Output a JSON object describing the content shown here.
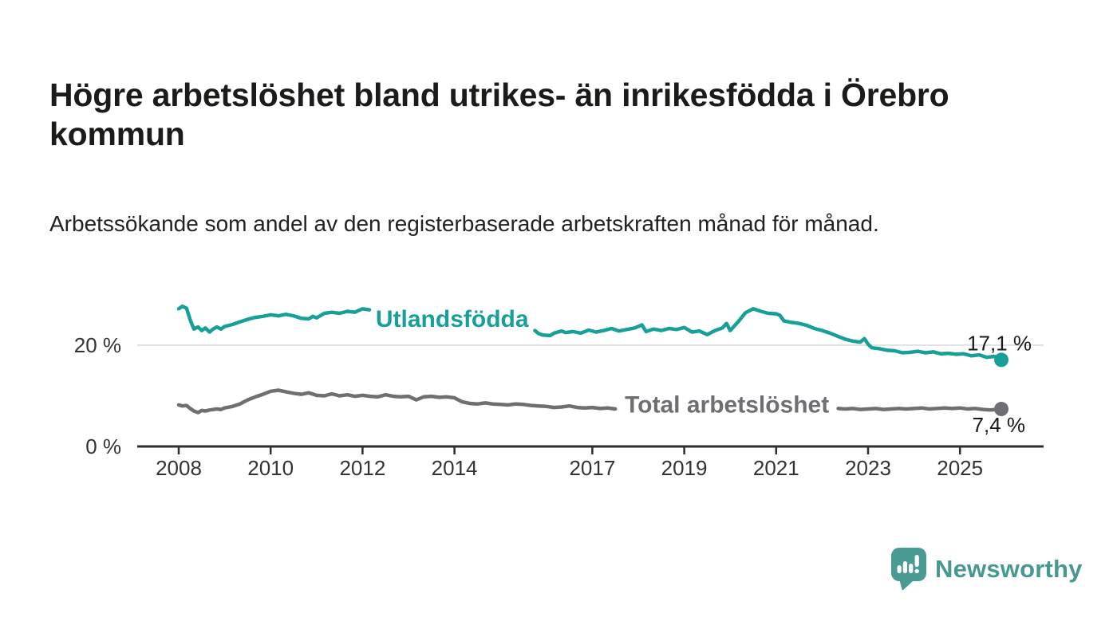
{
  "header": {
    "title": "Högre arbetslöshet bland utrikes- än inrikesfödda i Örebro kommun",
    "subtitle": "Arbetssökande som andel av den registerbaserade arbetskraften månad för månad."
  },
  "chart_data": {
    "type": "line",
    "unit": "%",
    "grid": "horizontal-only",
    "x_axis": {
      "ticks": [
        2008,
        2010,
        2012,
        2014,
        2017,
        2019,
        2021,
        2023,
        2025
      ],
      "range": [
        2007.1,
        2026.8
      ]
    },
    "y_axis": {
      "ticks": [
        {
          "value": 0,
          "label": "0 %"
        },
        {
          "value": 20,
          "label": "20 %"
        }
      ],
      "range": [
        0,
        32
      ]
    },
    "colors": {
      "accent_teal": "#18a098",
      "neutral_gray": "#6e6e73",
      "gridline": "#d8d8d8",
      "axis": "#2e2e2e",
      "tick_label": "#333333",
      "end_label": "#1a1a1a"
    },
    "series": [
      {
        "name": "Utlandsfödda",
        "color": "#18a098",
        "end_label": "17,1 %",
        "end_value": 17.1,
        "inline_label": {
          "text": "Utlandsfödda",
          "year": 2013.95,
          "value": 25.2
        },
        "segments": [
          [
            [
              2008.0,
              27.2
            ],
            [
              2008.08,
              27.7
            ],
            [
              2008.17,
              27.3
            ],
            [
              2008.25,
              25.0
            ],
            [
              2008.33,
              23.2
            ],
            [
              2008.42,
              23.6
            ],
            [
              2008.5,
              22.9
            ],
            [
              2008.58,
              23.4
            ],
            [
              2008.67,
              22.6
            ],
            [
              2008.75,
              23.2
            ],
            [
              2008.83,
              23.6
            ],
            [
              2008.92,
              23.2
            ],
            [
              2009.0,
              23.7
            ],
            [
              2009.17,
              24.1
            ],
            [
              2009.33,
              24.6
            ],
            [
              2009.5,
              25.1
            ],
            [
              2009.67,
              25.5
            ],
            [
              2009.83,
              25.7
            ],
            [
              2010.0,
              26.0
            ],
            [
              2010.17,
              25.8
            ],
            [
              2010.33,
              26.1
            ],
            [
              2010.5,
              25.8
            ],
            [
              2010.67,
              25.3
            ],
            [
              2010.83,
              25.2
            ],
            [
              2010.92,
              25.7
            ],
            [
              2011.0,
              25.4
            ],
            [
              2011.17,
              26.3
            ],
            [
              2011.33,
              26.5
            ],
            [
              2011.5,
              26.3
            ],
            [
              2011.67,
              26.7
            ],
            [
              2011.83,
              26.5
            ],
            [
              2012.0,
              27.2
            ],
            [
              2012.15,
              27.0
            ]
          ],
          [
            [
              2015.75,
              22.9
            ],
            [
              2015.83,
              22.3
            ],
            [
              2015.92,
              22.0
            ],
            [
              2016.08,
              21.9
            ],
            [
              2016.17,
              22.4
            ],
            [
              2016.33,
              22.8
            ],
            [
              2016.42,
              22.5
            ],
            [
              2016.58,
              22.7
            ],
            [
              2016.75,
              22.4
            ],
            [
              2016.92,
              23.0
            ],
            [
              2017.08,
              22.6
            ],
            [
              2017.25,
              22.9
            ],
            [
              2017.42,
              23.3
            ],
            [
              2017.58,
              22.8
            ],
            [
              2017.75,
              23.1
            ],
            [
              2017.92,
              23.4
            ],
            [
              2018.08,
              24.0
            ],
            [
              2018.17,
              22.7
            ],
            [
              2018.33,
              23.2
            ],
            [
              2018.5,
              22.9
            ],
            [
              2018.67,
              23.3
            ],
            [
              2018.83,
              23.1
            ],
            [
              2019.0,
              23.5
            ],
            [
              2019.17,
              22.6
            ],
            [
              2019.33,
              22.8
            ],
            [
              2019.5,
              22.1
            ],
            [
              2019.67,
              22.9
            ],
            [
              2019.83,
              23.4
            ],
            [
              2019.92,
              24.3
            ],
            [
              2020.0,
              22.9
            ],
            [
              2020.17,
              24.6
            ],
            [
              2020.33,
              26.4
            ],
            [
              2020.5,
              27.2
            ],
            [
              2020.67,
              26.7
            ],
            [
              2020.83,
              26.3
            ],
            [
              2021.0,
              26.2
            ],
            [
              2021.08,
              25.9
            ],
            [
              2021.17,
              24.8
            ],
            [
              2021.33,
              24.5
            ],
            [
              2021.5,
              24.3
            ],
            [
              2021.67,
              23.9
            ],
            [
              2021.83,
              23.3
            ],
            [
              2022.0,
              22.9
            ],
            [
              2022.17,
              22.4
            ],
            [
              2022.33,
              21.8
            ],
            [
              2022.5,
              21.2
            ],
            [
              2022.67,
              20.8
            ],
            [
              2022.83,
              20.6
            ],
            [
              2022.92,
              21.3
            ],
            [
              2023.0,
              20.2
            ],
            [
              2023.08,
              19.5
            ],
            [
              2023.25,
              19.3
            ],
            [
              2023.42,
              19.0
            ],
            [
              2023.58,
              18.9
            ],
            [
              2023.75,
              18.5
            ],
            [
              2023.92,
              18.6
            ],
            [
              2024.08,
              18.8
            ],
            [
              2024.25,
              18.5
            ],
            [
              2024.42,
              18.7
            ],
            [
              2024.58,
              18.3
            ],
            [
              2024.75,
              18.4
            ],
            [
              2024.92,
              18.2
            ],
            [
              2025.08,
              18.3
            ],
            [
              2025.25,
              17.9
            ],
            [
              2025.42,
              18.1
            ],
            [
              2025.58,
              17.6
            ],
            [
              2025.75,
              17.8
            ],
            [
              2025.9,
              17.1
            ]
          ]
        ]
      },
      {
        "name": "Total arbetslöshet",
        "color": "#6e6e73",
        "end_label": "7,4 %",
        "end_value": 7.4,
        "inline_label": {
          "text": "Total arbetslöshet",
          "year": 2019.93,
          "value": 8.3
        },
        "segments": [
          [
            [
              2008.0,
              8.2
            ],
            [
              2008.08,
              8.0
            ],
            [
              2008.17,
              8.1
            ],
            [
              2008.25,
              7.5
            ],
            [
              2008.33,
              7.0
            ],
            [
              2008.42,
              6.7
            ],
            [
              2008.5,
              7.1
            ],
            [
              2008.58,
              7.0
            ],
            [
              2008.67,
              7.2
            ],
            [
              2008.83,
              7.4
            ],
            [
              2008.92,
              7.3
            ],
            [
              2009.0,
              7.6
            ],
            [
              2009.17,
              7.9
            ],
            [
              2009.33,
              8.4
            ],
            [
              2009.5,
              9.2
            ],
            [
              2009.67,
              9.8
            ],
            [
              2009.83,
              10.3
            ],
            [
              2010.0,
              10.9
            ],
            [
              2010.17,
              11.1
            ],
            [
              2010.33,
              10.8
            ],
            [
              2010.5,
              10.5
            ],
            [
              2010.67,
              10.3
            ],
            [
              2010.83,
              10.6
            ],
            [
              2011.0,
              10.1
            ],
            [
              2011.17,
              10.0
            ],
            [
              2011.33,
              10.4
            ],
            [
              2011.5,
              10.0
            ],
            [
              2011.67,
              10.2
            ],
            [
              2011.83,
              9.9
            ],
            [
              2012.0,
              10.1
            ],
            [
              2012.17,
              9.9
            ],
            [
              2012.33,
              9.8
            ],
            [
              2012.5,
              10.2
            ],
            [
              2012.67,
              9.9
            ],
            [
              2012.83,
              9.8
            ],
            [
              2013.0,
              9.9
            ],
            [
              2013.17,
              9.2
            ],
            [
              2013.33,
              9.8
            ],
            [
              2013.5,
              9.9
            ],
            [
              2013.67,
              9.7
            ],
            [
              2013.83,
              9.8
            ],
            [
              2014.0,
              9.6
            ],
            [
              2014.17,
              8.8
            ],
            [
              2014.33,
              8.5
            ],
            [
              2014.5,
              8.4
            ],
            [
              2014.67,
              8.6
            ],
            [
              2014.83,
              8.4
            ],
            [
              2015.0,
              8.3
            ],
            [
              2015.17,
              8.2
            ],
            [
              2015.33,
              8.4
            ],
            [
              2015.5,
              8.3
            ],
            [
              2015.67,
              8.1
            ],
            [
              2015.83,
              8.0
            ],
            [
              2016.0,
              7.9
            ],
            [
              2016.17,
              7.7
            ],
            [
              2016.33,
              7.8
            ],
            [
              2016.5,
              8.0
            ],
            [
              2016.67,
              7.7
            ],
            [
              2016.83,
              7.6
            ],
            [
              2017.0,
              7.7
            ],
            [
              2017.17,
              7.5
            ],
            [
              2017.33,
              7.6
            ],
            [
              2017.5,
              7.4
            ]
          ],
          [
            [
              2022.35,
              7.5
            ],
            [
              2022.5,
              7.4
            ],
            [
              2022.67,
              7.5
            ],
            [
              2022.83,
              7.3
            ],
            [
              2023.0,
              7.4
            ],
            [
              2023.17,
              7.5
            ],
            [
              2023.33,
              7.3
            ],
            [
              2023.5,
              7.4
            ],
            [
              2023.67,
              7.5
            ],
            [
              2023.83,
              7.4
            ],
            [
              2024.0,
              7.5
            ],
            [
              2024.17,
              7.6
            ],
            [
              2024.33,
              7.4
            ],
            [
              2024.5,
              7.5
            ],
            [
              2024.67,
              7.6
            ],
            [
              2024.83,
              7.5
            ],
            [
              2025.0,
              7.6
            ],
            [
              2025.17,
              7.4
            ],
            [
              2025.33,
              7.5
            ],
            [
              2025.5,
              7.3
            ],
            [
              2025.67,
              7.2
            ],
            [
              2025.9,
              7.4
            ]
          ]
        ]
      }
    ]
  },
  "footer": {
    "brand": "Newsworthy",
    "brand_color": "#47998f",
    "logo_color": "#4a9b93"
  }
}
